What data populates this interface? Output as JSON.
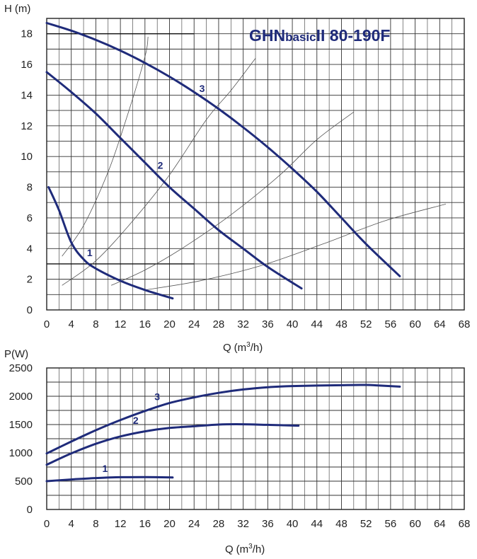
{
  "chart_data": [
    {
      "type": "line",
      "title_main": "GHN",
      "title_mid": "basic",
      "title_end": "II  80-190F",
      "ylabel_var": "H",
      "ylabel_unit": "(m)",
      "xlabel_pre": "Q",
      "xlabel_unit_open": "(m",
      "xlabel_sup": "3",
      "xlabel_unit_close": "/h)",
      "xlim": [
        0,
        68
      ],
      "ylim": [
        0,
        19
      ],
      "xticks": [
        0,
        4,
        8,
        12,
        16,
        20,
        24,
        28,
        32,
        36,
        40,
        44,
        48,
        52,
        56,
        60,
        64,
        68
      ],
      "yticks": [
        0,
        2,
        4,
        6,
        8,
        10,
        12,
        14,
        16,
        18
      ],
      "grid": true,
      "series": [
        {
          "name": "1",
          "label_at": [
            7,
            3.5
          ],
          "points": [
            [
              0.3,
              8
            ],
            [
              2,
              6.5
            ],
            [
              4,
              4.4
            ],
            [
              6,
              3.3
            ],
            [
              8,
              2.7
            ],
            [
              12,
              1.9
            ],
            [
              16,
              1.3
            ],
            [
              20.5,
              0.75
            ]
          ]
        },
        {
          "name": "2",
          "label_at": [
            18.5,
            9.2
          ],
          "points": [
            [
              0,
              15.5
            ],
            [
              4,
              14.2
            ],
            [
              8,
              12.8
            ],
            [
              12,
              11.2
            ],
            [
              16,
              9.6
            ],
            [
              20,
              8
            ],
            [
              24,
              6.6
            ],
            [
              28,
              5.2
            ],
            [
              32,
              4
            ],
            [
              36,
              2.8
            ],
            [
              41.5,
              1.4
            ]
          ]
        },
        {
          "name": "3",
          "label_at": [
            25.3,
            14.2
          ],
          "points": [
            [
              0,
              18.7
            ],
            [
              4,
              18.2
            ],
            [
              8,
              17.6
            ],
            [
              12,
              16.9
            ],
            [
              16,
              16.1
            ],
            [
              20,
              15.2
            ],
            [
              24,
              14.2
            ],
            [
              28,
              13.1
            ],
            [
              32,
              11.9
            ],
            [
              36,
              10.6
            ],
            [
              40,
              9.2
            ],
            [
              44,
              7.7
            ],
            [
              48,
              6
            ],
            [
              52,
              4.3
            ],
            [
              57.5,
              2.2
            ]
          ]
        }
      ],
      "system_curves": [
        [
          [
            2.5,
            3.5
          ],
          [
            6,
            5.5
          ],
          [
            10,
            9
          ],
          [
            13,
            12.5
          ],
          [
            16,
            16.5
          ],
          [
            16.5,
            17.8
          ]
        ],
        [
          [
            2.5,
            1.6
          ],
          [
            8,
            3.2
          ],
          [
            14,
            5.8
          ],
          [
            20,
            8.8
          ],
          [
            26,
            12.4
          ],
          [
            30,
            14.3
          ],
          [
            34,
            16.4
          ]
        ],
        [
          [
            10.5,
            1.6
          ],
          [
            16,
            2.6
          ],
          [
            22,
            4
          ],
          [
            30,
            6.2
          ],
          [
            38,
            8.8
          ],
          [
            44,
            11.1
          ],
          [
            50,
            12.9
          ]
        ],
        [
          [
            16,
            1.3
          ],
          [
            25,
            1.9
          ],
          [
            35,
            2.9
          ],
          [
            45,
            4.3
          ],
          [
            55,
            5.8
          ],
          [
            65,
            6.9
          ]
        ]
      ],
      "extra_segments": [
        [
          [
            0,
            18
          ],
          [
            24,
            18
          ]
        ],
        [
          [
            0,
            3
          ],
          [
            24,
            3
          ]
        ]
      ]
    },
    {
      "type": "line",
      "ylabel": "P(W)",
      "xlabel_pre": "Q",
      "xlabel_unit_open": "(m",
      "xlabel_sup": "3",
      "xlabel_unit_close": "/h)",
      "xlim": [
        0,
        68
      ],
      "ylim": [
        0,
        2500
      ],
      "xticks": [
        0,
        4,
        8,
        12,
        16,
        20,
        24,
        28,
        32,
        36,
        40,
        44,
        48,
        52,
        56,
        60,
        64,
        68
      ],
      "yticks": [
        0,
        500,
        1000,
        1500,
        2000,
        2500
      ],
      "grid": true,
      "series": [
        {
          "name": "1",
          "label_at": [
            9.5,
            660
          ],
          "points": [
            [
              0,
              500
            ],
            [
              4,
              530
            ],
            [
              8,
              555
            ],
            [
              12,
              570
            ],
            [
              16,
              572
            ],
            [
              20.5,
              565
            ]
          ]
        },
        {
          "name": "2",
          "label_at": [
            14.5,
            1510
          ],
          "points": [
            [
              0,
              790
            ],
            [
              4,
              990
            ],
            [
              8,
              1160
            ],
            [
              12,
              1290
            ],
            [
              16,
              1380
            ],
            [
              20,
              1440
            ],
            [
              24,
              1470
            ],
            [
              28,
              1500
            ],
            [
              32,
              1505
            ],
            [
              36,
              1495
            ],
            [
              41,
              1480
            ]
          ]
        },
        {
          "name": "3",
          "label_at": [
            18,
            1930
          ],
          "points": [
            [
              0,
              990
            ],
            [
              4,
              1200
            ],
            [
              8,
              1400
            ],
            [
              12,
              1580
            ],
            [
              16,
              1740
            ],
            [
              20,
              1880
            ],
            [
              24,
              1980
            ],
            [
              28,
              2060
            ],
            [
              32,
              2120
            ],
            [
              36,
              2160
            ],
            [
              40,
              2180
            ],
            [
              48,
              2195
            ],
            [
              52,
              2200
            ],
            [
              54,
              2190
            ],
            [
              57.5,
              2170
            ]
          ]
        }
      ]
    }
  ]
}
